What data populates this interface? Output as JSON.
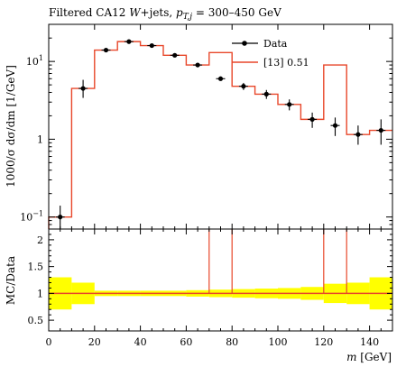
{
  "chart_data": {
    "type": "line",
    "title": "Filtered CA12 W+jets, p_T,j = 300–450 GeV",
    "title_parts": {
      "prefix": "Filtered CA12 ",
      "w": "W",
      "jets": "+jets, ",
      "pt": "p",
      "pt_sub": "T,j",
      "range": " = 300–450 GeV"
    },
    "xlabel": "m [GeV]",
    "xlabel_parts": {
      "var": "m",
      "unit": " [GeV]"
    },
    "ylabel": "1000/σ dσ/dm [1/GeV]",
    "ratio_ylabel": "MC/Data",
    "xlim": [
      0,
      150
    ],
    "ylim": [
      0.07,
      30
    ],
    "yscale": "log",
    "ratio_ylim": [
      0.5,
      2
    ],
    "x_ticks": [
      "0",
      "20",
      "40",
      "60",
      "80",
      "100",
      "120",
      "140"
    ],
    "x_tick_values": [
      0,
      20,
      40,
      60,
      80,
      100,
      120,
      140
    ],
    "y_ticks": [
      {
        "value": 0.1,
        "base": "10",
        "exp": "−1"
      },
      {
        "value": 1,
        "base": "1",
        "exp": ""
      },
      {
        "value": 10,
        "base": "10",
        "exp": "1"
      }
    ],
    "ratio_ticks": [
      "0.5",
      "1",
      "1.5",
      "2"
    ],
    "ratio_tick_values": [
      0.5,
      1,
      1.5,
      2
    ],
    "legend_position": "top-right",
    "series": [
      {
        "name": "Data",
        "kind": "points",
        "x": [
          5,
          15,
          25,
          35,
          45,
          55,
          65,
          75,
          85,
          95,
          105,
          115,
          125,
          135,
          145
        ],
        "y": [
          0.1,
          4.5,
          14,
          18,
          16,
          12,
          9,
          6,
          4.8,
          3.8,
          2.8,
          1.8,
          1.5,
          1.15,
          1.3
        ],
        "yerr_low": [
          0.03,
          1.1,
          0.6,
          0.6,
          0.6,
          0.5,
          0.4,
          0.35,
          0.5,
          0.5,
          0.45,
          0.4,
          0.4,
          0.3,
          0.45
        ],
        "yerr_high": [
          0.04,
          1.3,
          0.6,
          0.6,
          0.6,
          0.5,
          0.4,
          0.35,
          0.5,
          0.5,
          0.45,
          0.4,
          0.4,
          0.35,
          0.5
        ],
        "color": "#000000"
      },
      {
        "name": "[13] 0.51",
        "kind": "histogram",
        "bin_edges": [
          0,
          10,
          20,
          30,
          40,
          50,
          60,
          70,
          80,
          90,
          100,
          110,
          120,
          130,
          140,
          150
        ],
        "values": [
          0.1,
          4.5,
          14,
          18,
          16,
          12,
          9,
          13,
          4.8,
          3.8,
          2.8,
          1.8,
          9,
          1.15,
          1.3
        ],
        "color": "#e8472a"
      }
    ],
    "ratio": {
      "line_value": 1,
      "spikes": [
        70,
        80,
        120,
        130
      ],
      "band_color": "#ffff00",
      "band_half_widths": [
        0.3,
        0.2,
        0.05,
        0.05,
        0.05,
        0.05,
        0.06,
        0.07,
        0.08,
        0.09,
        0.1,
        0.12,
        0.18,
        0.2,
        0.3
      ]
    }
  }
}
